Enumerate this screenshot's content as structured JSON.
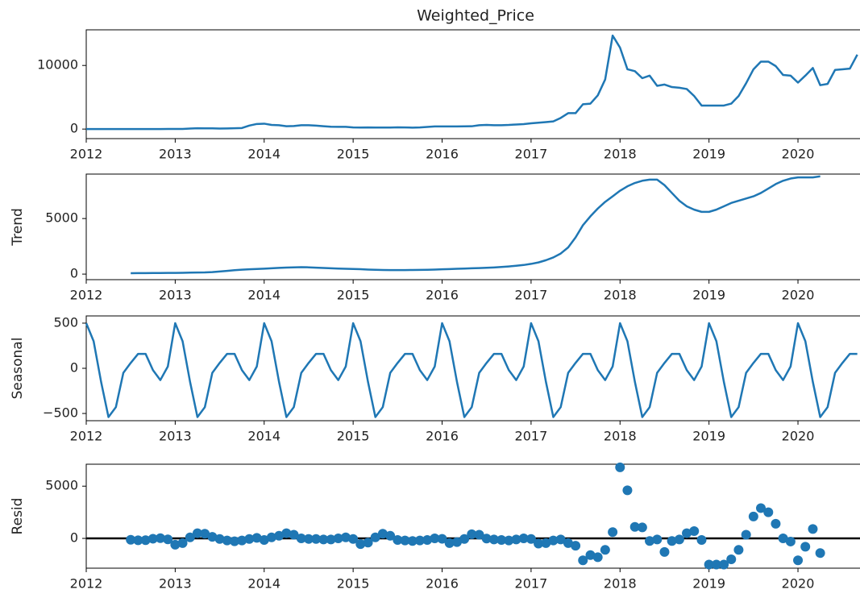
{
  "chart_data": [
    {
      "type": "line",
      "title": "Weighted_Price",
      "color": "#1f77b4",
      "x": [
        2012,
        2012.083,
        2012.167,
        2012.25,
        2012.333,
        2012.417,
        2012.5,
        2012.583,
        2012.667,
        2012.75,
        2012.833,
        2012.917,
        2013,
        2013.083,
        2013.167,
        2013.25,
        2013.333,
        2013.417,
        2013.5,
        2013.583,
        2013.667,
        2013.75,
        2013.833,
        2013.917,
        2014,
        2014.083,
        2014.167,
        2014.25,
        2014.333,
        2014.417,
        2014.5,
        2014.583,
        2014.667,
        2014.75,
        2014.833,
        2014.917,
        2015,
        2015.083,
        2015.167,
        2015.25,
        2015.333,
        2015.417,
        2015.5,
        2015.583,
        2015.667,
        2015.75,
        2015.833,
        2015.917,
        2016,
        2016.083,
        2016.167,
        2016.25,
        2016.333,
        2016.417,
        2016.5,
        2016.583,
        2016.667,
        2016.75,
        2016.833,
        2016.917,
        2017,
        2017.083,
        2017.167,
        2017.25,
        2017.333,
        2017.417,
        2017.5,
        2017.583,
        2017.667,
        2017.75,
        2017.833,
        2017.917,
        2018,
        2018.083,
        2018.167,
        2018.25,
        2018.333,
        2018.417,
        2018.5,
        2018.583,
        2018.667,
        2018.75,
        2018.833,
        2018.917,
        2019,
        2019.083,
        2019.167,
        2019.25,
        2019.333,
        2019.417,
        2019.5,
        2019.583,
        2019.667,
        2019.75,
        2019.833,
        2019.917,
        2020,
        2020.083,
        2020.167,
        2020.25,
        2020.333,
        2020.417,
        2020.5,
        2020.583,
        2020.667
      ],
      "values": [
        5,
        5,
        5,
        5,
        5,
        6,
        8,
        10,
        11,
        11,
        11,
        13,
        15,
        25,
        90,
        130,
        110,
        110,
        90,
        100,
        125,
        170,
        550,
        800,
        850,
        650,
        600,
        450,
        480,
        600,
        600,
        550,
        450,
        370,
        360,
        350,
        250,
        240,
        260,
        240,
        240,
        240,
        280,
        250,
        230,
        260,
        330,
        420,
        410,
        410,
        410,
        430,
        440,
        600,
        650,
        600,
        610,
        650,
        720,
        780,
        900,
        1000,
        1100,
        1200,
        1750,
        2500,
        2500,
        3900,
        4000,
        5300,
        7800,
        14700,
        12800,
        9400,
        9100,
        8000,
        8400,
        6800,
        7000,
        6600,
        6500,
        6300,
        5200,
        3700,
        3700,
        3700,
        3700,
        4000,
        5200,
        7200,
        9400,
        10600,
        10600,
        9900,
        8500,
        8400,
        7300,
        8400,
        9600,
        6900,
        7100,
        9300,
        9400,
        9500,
        11700
      ],
      "xlim": [
        2012,
        2020.7
      ],
      "xticks": [
        2012,
        2013,
        2014,
        2015,
        2016,
        2017,
        2018,
        2019,
        2020
      ],
      "ylim": [
        -1500,
        15600
      ],
      "yticks": [
        0,
        10000
      ]
    },
    {
      "type": "line",
      "y_label": "Trend",
      "color": "#1f77b4",
      "x": [
        2012,
        2012.083,
        2012.167,
        2012.25,
        2012.333,
        2012.417,
        2012.5,
        2012.583,
        2012.667,
        2012.75,
        2012.833,
        2012.917,
        2013,
        2013.083,
        2013.167,
        2013.25,
        2013.333,
        2013.417,
        2013.5,
        2013.583,
        2013.667,
        2013.75,
        2013.833,
        2013.917,
        2014,
        2014.083,
        2014.167,
        2014.25,
        2014.333,
        2014.417,
        2014.5,
        2014.583,
        2014.667,
        2014.75,
        2014.833,
        2014.917,
        2015,
        2015.083,
        2015.167,
        2015.25,
        2015.333,
        2015.417,
        2015.5,
        2015.583,
        2015.667,
        2015.75,
        2015.833,
        2015.917,
        2016,
        2016.083,
        2016.167,
        2016.25,
        2016.333,
        2016.417,
        2016.5,
        2016.583,
        2016.667,
        2016.75,
        2016.833,
        2016.917,
        2017,
        2017.083,
        2017.167,
        2017.25,
        2017.333,
        2017.417,
        2017.5,
        2017.583,
        2017.667,
        2017.75,
        2017.833,
        2017.917,
        2018,
        2018.083,
        2018.167,
        2018.25,
        2018.333,
        2018.417,
        2018.5,
        2018.583,
        2018.667,
        2018.75,
        2018.833,
        2018.917,
        2019,
        2019.083,
        2019.167,
        2019.25,
        2019.333,
        2019.417,
        2019.5,
        2019.583,
        2019.667,
        2019.75,
        2019.833,
        2019.917,
        2020,
        2020.083,
        2020.167,
        2020.25,
        2020.333,
        2020.417,
        2020.5,
        2020.583,
        2020.667
      ],
      "values": [
        null,
        null,
        null,
        null,
        null,
        null,
        80,
        85,
        90,
        95,
        100,
        105,
        110,
        120,
        130,
        140,
        150,
        180,
        230,
        290,
        350,
        400,
        430,
        460,
        490,
        520,
        560,
        590,
        610,
        620,
        610,
        580,
        550,
        520,
        500,
        480,
        460,
        440,
        410,
        390,
        370,
        360,
        360,
        360,
        370,
        380,
        390,
        410,
        430,
        450,
        480,
        500,
        520,
        540,
        570,
        600,
        640,
        690,
        750,
        820,
        920,
        1050,
        1250,
        1500,
        1850,
        2400,
        3300,
        4400,
        5200,
        5900,
        6500,
        7000,
        7500,
        7900,
        8200,
        8400,
        8500,
        8500,
        8000,
        7300,
        6600,
        6100,
        5800,
        5600,
        5600,
        5800,
        6100,
        6400,
        6600,
        6800,
        7000,
        7300,
        7700,
        8100,
        8400,
        8600,
        8700,
        8700,
        8700,
        8800,
        null,
        null,
        null,
        null,
        null
      ],
      "xlim": [
        2012,
        2020.7
      ],
      "xticks": [
        2012,
        2013,
        2014,
        2015,
        2016,
        2017,
        2018,
        2019,
        2020
      ],
      "ylim": [
        -500,
        9000
      ],
      "yticks": [
        0,
        5000
      ]
    },
    {
      "type": "line",
      "y_label": "Seasonal",
      "color": "#1f77b4",
      "x": [
        2012,
        2012.083,
        2012.167,
        2012.25,
        2012.333,
        2012.417,
        2012.5,
        2012.583,
        2012.667,
        2012.75,
        2012.833,
        2012.917,
        2013,
        2013.083,
        2013.167,
        2013.25,
        2013.333,
        2013.417,
        2013.5,
        2013.583,
        2013.667,
        2013.75,
        2013.833,
        2013.917,
        2014,
        2014.083,
        2014.167,
        2014.25,
        2014.333,
        2014.417,
        2014.5,
        2014.583,
        2014.667,
        2014.75,
        2014.833,
        2014.917,
        2015,
        2015.083,
        2015.167,
        2015.25,
        2015.333,
        2015.417,
        2015.5,
        2015.583,
        2015.667,
        2015.75,
        2015.833,
        2015.917,
        2016,
        2016.083,
        2016.167,
        2016.25,
        2016.333,
        2016.417,
        2016.5,
        2016.583,
        2016.667,
        2016.75,
        2016.833,
        2016.917,
        2017,
        2017.083,
        2017.167,
        2017.25,
        2017.333,
        2017.417,
        2017.5,
        2017.583,
        2017.667,
        2017.75,
        2017.833,
        2017.917,
        2018,
        2018.083,
        2018.167,
        2018.25,
        2018.333,
        2018.417,
        2018.5,
        2018.583,
        2018.667,
        2018.75,
        2018.833,
        2018.917,
        2019,
        2019.083,
        2019.167,
        2019.25,
        2019.333,
        2019.417,
        2019.5,
        2019.583,
        2019.667,
        2019.75,
        2019.833,
        2019.917,
        2020,
        2020.083,
        2020.167,
        2020.25,
        2020.333,
        2020.417,
        2020.5,
        2020.583,
        2020.667
      ],
      "values": [
        500,
        300,
        -150,
        -540,
        -430,
        -50,
        60,
        160,
        160,
        -20,
        -130,
        20,
        500,
        300,
        -150,
        -540,
        -430,
        -50,
        60,
        160,
        160,
        -20,
        -130,
        20,
        500,
        300,
        -150,
        -540,
        -430,
        -50,
        60,
        160,
        160,
        -20,
        -130,
        20,
        500,
        300,
        -150,
        -540,
        -430,
        -50,
        60,
        160,
        160,
        -20,
        -130,
        20,
        500,
        300,
        -150,
        -540,
        -430,
        -50,
        60,
        160,
        160,
        -20,
        -130,
        20,
        500,
        300,
        -150,
        -540,
        -430,
        -50,
        60,
        160,
        160,
        -20,
        -130,
        20,
        500,
        300,
        -150,
        -540,
        -430,
        -50,
        60,
        160,
        160,
        -20,
        -130,
        20,
        500,
        300,
        -150,
        -540,
        -430,
        -50,
        60,
        160,
        160,
        -20,
        -130,
        20,
        500,
        300,
        -150,
        -540,
        -430,
        -50,
        60,
        160,
        160
      ],
      "xlim": [
        2012,
        2020.7
      ],
      "xticks": [
        2012,
        2013,
        2014,
        2015,
        2016,
        2017,
        2018,
        2019,
        2020
      ],
      "ylim": [
        -580,
        580
      ],
      "yticks": [
        {
          "value": -500,
          "label": "−500"
        },
        0,
        500
      ]
    },
    {
      "type": "scatter",
      "y_label": "Resid",
      "color": "#1f77b4",
      "baseline": 0,
      "x": [
        2012,
        2012.083,
        2012.167,
        2012.25,
        2012.333,
        2012.417,
        2012.5,
        2012.583,
        2012.667,
        2012.75,
        2012.833,
        2012.917,
        2013,
        2013.083,
        2013.167,
        2013.25,
        2013.333,
        2013.417,
        2013.5,
        2013.583,
        2013.667,
        2013.75,
        2013.833,
        2013.917,
        2014,
        2014.083,
        2014.167,
        2014.25,
        2014.333,
        2014.417,
        2014.5,
        2014.583,
        2014.667,
        2014.75,
        2014.833,
        2014.917,
        2015,
        2015.083,
        2015.167,
        2015.25,
        2015.333,
        2015.417,
        2015.5,
        2015.583,
        2015.667,
        2015.75,
        2015.833,
        2015.917,
        2016,
        2016.083,
        2016.167,
        2016.25,
        2016.333,
        2016.417,
        2016.5,
        2016.583,
        2016.667,
        2016.75,
        2016.833,
        2016.917,
        2017,
        2017.083,
        2017.167,
        2017.25,
        2017.333,
        2017.417,
        2017.5,
        2017.583,
        2017.667,
        2017.75,
        2017.833,
        2017.917,
        2018,
        2018.083,
        2018.167,
        2018.25,
        2018.333,
        2018.417,
        2018.5,
        2018.583,
        2018.667,
        2018.75,
        2018.833,
        2018.917,
        2019,
        2019.083,
        2019.167,
        2019.25,
        2019.333,
        2019.417,
        2019.5,
        2019.583,
        2019.667,
        2019.75,
        2019.833,
        2019.917,
        2020,
        2020.083,
        2020.167,
        2020.25,
        2020.333,
        2020.417,
        2020.5,
        2020.583,
        2020.667
      ],
      "values": [
        null,
        null,
        null,
        null,
        null,
        null,
        -130,
        -180,
        -170,
        -30,
        20,
        -90,
        -600,
        -450,
        100,
        500,
        450,
        150,
        -50,
        -200,
        -280,
        -200,
        -50,
        50,
        -150,
        100,
        250,
        500,
        350,
        0,
        -50,
        -50,
        -100,
        -100,
        0,
        100,
        -50,
        -550,
        -400,
        100,
        450,
        250,
        -150,
        -200,
        -250,
        -200,
        -150,
        0,
        -40,
        -450,
        -350,
        -50,
        400,
        350,
        -20,
        -100,
        -150,
        -200,
        -100,
        0,
        -50,
        -500,
        -450,
        -200,
        -100,
        -450,
        -700,
        -2100,
        -1600,
        -1800,
        -1100,
        600,
        6800,
        4600,
        1100,
        1050,
        -250,
        -100,
        -1300,
        -250,
        -100,
        500,
        700,
        -150,
        -2500,
        -2500,
        -2500,
        -2000,
        -1100,
        350,
        2100,
        2900,
        2500,
        1400,
        0,
        -300,
        -2100,
        -800,
        900,
        -1400,
        null,
        null,
        null,
        null,
        null
      ],
      "xlim": [
        2012,
        2020.7
      ],
      "xticks": [
        2012,
        2013,
        2014,
        2015,
        2016,
        2017,
        2018,
        2019,
        2020
      ],
      "ylim": [
        -2850,
        7100
      ],
      "yticks": [
        0,
        5000
      ]
    }
  ]
}
